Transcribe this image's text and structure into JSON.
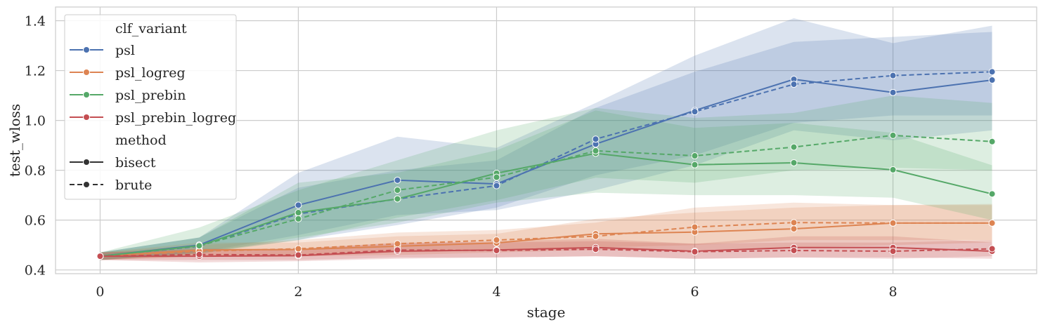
{
  "chart_data": {
    "type": "line",
    "xlabel": "stage",
    "ylabel": "test_wloss",
    "xlim": [
      -0.45,
      9.45
    ],
    "ylim": [
      0.385,
      1.455
    ],
    "xticks": [
      0,
      2,
      4,
      6,
      8
    ],
    "yticks": [
      0.4,
      0.6,
      0.8,
      1.0,
      1.2,
      1.4
    ],
    "ytick_labels": [
      "0.4",
      "0.6",
      "0.8",
      "1.0",
      "1.2",
      "1.4"
    ],
    "grid": true,
    "legend_placement": "top-left",
    "legend": {
      "hue_title": "clf_variant",
      "style_title": "method",
      "hue_entries": [
        "psl",
        "psl_logreg",
        "psl_prebin",
        "psl_prebin_logreg"
      ],
      "style_entries": [
        "bisect",
        "brute"
      ]
    },
    "colors": {
      "psl": "#4c72b0",
      "psl_logreg": "#dd8452",
      "psl_prebin": "#55a868",
      "psl_prebin_logreg": "#c44e52",
      "neutral": "#333333"
    },
    "series": [
      {
        "name": "psl",
        "method": "bisect",
        "dash": "solid",
        "x": [
          0,
          1,
          2,
          3,
          4,
          5,
          6,
          7,
          8,
          9
        ],
        "y": [
          0.455,
          0.5,
          0.66,
          0.76,
          0.745,
          0.905,
          1.04,
          1.165,
          1.112,
          1.162
        ],
        "lower": [
          0.44,
          0.47,
          0.54,
          0.62,
          0.64,
          0.72,
          0.82,
          0.96,
          0.92,
          0.96
        ],
        "upper": [
          0.47,
          0.53,
          0.79,
          0.935,
          0.89,
          1.07,
          1.26,
          1.41,
          1.31,
          1.38
        ]
      },
      {
        "name": "psl",
        "method": "brute",
        "dash": "dashed",
        "x": [
          0,
          1,
          2,
          3,
          4,
          5,
          6,
          7,
          8,
          9
        ],
        "y": [
          0.455,
          0.495,
          0.625,
          0.685,
          0.738,
          0.925,
          1.035,
          1.145,
          1.18,
          1.195
        ],
        "lower": [
          0.44,
          0.47,
          0.52,
          0.58,
          0.65,
          0.78,
          0.86,
          0.99,
          1.02,
          1.02
        ],
        "upper": [
          0.47,
          0.53,
          0.73,
          0.8,
          0.84,
          1.05,
          1.195,
          1.315,
          1.335,
          1.355
        ]
      },
      {
        "name": "psl_logreg",
        "method": "bisect",
        "dash": "solid",
        "x": [
          0,
          1,
          2,
          3,
          4,
          5,
          6,
          7,
          8,
          9
        ],
        "y": [
          0.455,
          0.48,
          0.482,
          0.495,
          0.508,
          0.545,
          0.552,
          0.565,
          0.588,
          0.588
        ],
        "lower": [
          0.44,
          0.455,
          0.455,
          0.46,
          0.47,
          0.48,
          0.48,
          0.49,
          0.5,
          0.51
        ],
        "upper": [
          0.47,
          0.51,
          0.51,
          0.535,
          0.545,
          0.605,
          0.63,
          0.65,
          0.66,
          0.66
        ]
      },
      {
        "name": "psl_logreg",
        "method": "brute",
        "dash": "dashed",
        "x": [
          0,
          1,
          2,
          3,
          4,
          5,
          6,
          7,
          8,
          9
        ],
        "y": [
          0.455,
          0.475,
          0.485,
          0.505,
          0.52,
          0.535,
          0.572,
          0.59,
          0.588,
          0.588
        ],
        "lower": [
          0.44,
          0.455,
          0.46,
          0.47,
          0.48,
          0.49,
          0.5,
          0.52,
          0.52,
          0.52
        ],
        "upper": [
          0.47,
          0.5,
          0.52,
          0.55,
          0.56,
          0.59,
          0.65,
          0.67,
          0.66,
          0.665
        ]
      },
      {
        "name": "psl_prebin",
        "method": "bisect",
        "dash": "solid",
        "x": [
          0,
          1,
          2,
          3,
          4,
          5,
          6,
          7,
          8,
          9
        ],
        "y": [
          0.455,
          0.497,
          0.63,
          0.685,
          0.788,
          0.868,
          0.822,
          0.83,
          0.802,
          0.705
        ],
        "lower": [
          0.44,
          0.465,
          0.53,
          0.59,
          0.67,
          0.71,
          0.7,
          0.7,
          0.69,
          0.6
        ],
        "upper": [
          0.47,
          0.53,
          0.75,
          0.79,
          0.88,
          1.04,
          0.97,
          0.99,
          0.95,
          0.82
        ]
      },
      {
        "name": "psl_prebin",
        "method": "brute",
        "dash": "dashed",
        "x": [
          0,
          1,
          2,
          3,
          4,
          5,
          6,
          7,
          8,
          9
        ],
        "y": [
          0.455,
          0.497,
          0.605,
          0.72,
          0.772,
          0.878,
          0.858,
          0.893,
          0.94,
          0.915
        ],
        "lower": [
          0.44,
          0.465,
          0.52,
          0.61,
          0.68,
          0.77,
          0.75,
          0.8,
          0.81,
          0.8
        ],
        "upper": [
          0.47,
          0.57,
          0.72,
          0.84,
          0.96,
          1.05,
          1.01,
          1.03,
          1.1,
          1.07
        ]
      },
      {
        "name": "psl_prebin_logreg",
        "method": "bisect",
        "dash": "solid",
        "x": [
          0,
          1,
          2,
          3,
          4,
          5,
          6,
          7,
          8,
          9
        ],
        "y": [
          0.455,
          0.455,
          0.457,
          0.475,
          0.48,
          0.49,
          0.475,
          0.49,
          0.49,
          0.475
        ],
        "lower": [
          0.44,
          0.43,
          0.435,
          0.445,
          0.45,
          0.455,
          0.445,
          0.45,
          0.45,
          0.445
        ],
        "upper": [
          0.47,
          0.48,
          0.485,
          0.505,
          0.515,
          0.525,
          0.505,
          0.535,
          0.535,
          0.51
        ]
      },
      {
        "name": "psl_prebin_logreg",
        "method": "brute",
        "dash": "dashed",
        "x": [
          0,
          1,
          2,
          3,
          4,
          5,
          6,
          7,
          8,
          9
        ],
        "y": [
          0.455,
          0.462,
          0.46,
          0.48,
          0.478,
          0.483,
          0.473,
          0.478,
          0.475,
          0.485
        ],
        "lower": [
          0.44,
          0.44,
          0.44,
          0.45,
          0.45,
          0.455,
          0.445,
          0.45,
          0.445,
          0.455
        ],
        "upper": [
          0.47,
          0.485,
          0.485,
          0.51,
          0.51,
          0.515,
          0.505,
          0.51,
          0.51,
          0.52
        ]
      }
    ]
  }
}
